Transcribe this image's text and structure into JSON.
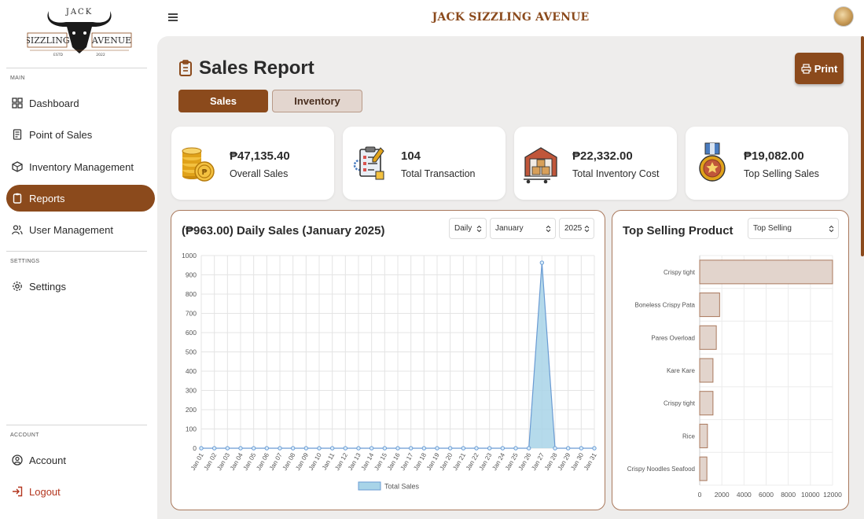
{
  "brand": {
    "logo_top": "JACK",
    "logo_left": "SIZZLING",
    "logo_right": "AVENUE",
    "logo_estd": "ESTD",
    "logo_year": "2022",
    "header_title": "JACK SIZZLING AVENUE"
  },
  "sidebar": {
    "section_main": "MAIN",
    "section_settings": "SETTINGS",
    "section_account": "ACCOUNT",
    "items": {
      "dashboard": "Dashboard",
      "pos": "Point of Sales",
      "inventory": "Inventory Management",
      "reports": "Reports",
      "users": "User Management",
      "settings": "Settings",
      "account": "Account",
      "logout": "Logout"
    }
  },
  "page": {
    "title": "Sales Report",
    "print_label": "Print",
    "tabs": {
      "sales": "Sales",
      "inventory": "Inventory"
    }
  },
  "cards": [
    {
      "value": "₱47,135.40",
      "label": "Overall Sales",
      "icon": "coins-icon"
    },
    {
      "value": "104",
      "label": "Total Transaction",
      "icon": "clipboard-icon"
    },
    {
      "value": "₱22,332.00",
      "label": "Total Inventory Cost",
      "icon": "warehouse-icon"
    },
    {
      "value": "₱19,082.00",
      "label": "Top Selling Sales",
      "icon": "medal-icon"
    }
  ],
  "daily_panel": {
    "title": "(₱963.00) Daily Sales (January 2025)",
    "filters": {
      "period": "Daily",
      "month": "January",
      "year": "2025"
    }
  },
  "top_panel": {
    "title": "Top Selling Product",
    "filter": "Top Selling"
  },
  "colors": {
    "brand": "#8b4a1c",
    "line_fill": "#a8d4e8",
    "line_stroke": "#6a9bd3",
    "bar_fill": "#e2d4cc",
    "bar_stroke": "#a9785c"
  },
  "chart_data": [
    {
      "type": "area",
      "categories": [
        "Jan 01",
        "Jan 02",
        "Jan 03",
        "Jan 04",
        "Jan 05",
        "Jan 06",
        "Jan 07",
        "Jan 08",
        "Jan 09",
        "Jan 10",
        "Jan 11",
        "Jan 12",
        "Jan 13",
        "Jan 14",
        "Jan 15",
        "Jan 16",
        "Jan 17",
        "Jan 18",
        "Jan 19",
        "Jan 20",
        "Jan 21",
        "Jan 22",
        "Jan 23",
        "Jan 24",
        "Jan 25",
        "Jan 26",
        "Jan 27",
        "Jan 28",
        "Jan 29",
        "Jan 30",
        "Jan 31"
      ],
      "series": [
        {
          "name": "Total Sales",
          "values": [
            0,
            0,
            0,
            0,
            0,
            0,
            0,
            0,
            0,
            0,
            0,
            0,
            0,
            0,
            0,
            0,
            0,
            0,
            0,
            0,
            0,
            0,
            0,
            0,
            0,
            0,
            963,
            0,
            0,
            0,
            0
          ]
        }
      ],
      "ylim": [
        0,
        1000
      ],
      "yticks": [
        0,
        100,
        200,
        300,
        400,
        500,
        600,
        700,
        800,
        900,
        1000
      ],
      "grid": true,
      "legend": "bottom"
    },
    {
      "type": "bar",
      "orientation": "horizontal",
      "categories": [
        "Crispy tight",
        "Boneless Crispy Pata",
        "Pares Overload",
        "Kare Kare",
        "Crispy tight",
        "Rice",
        "Crispy Noodles Seafood"
      ],
      "values": [
        12000,
        1800,
        1500,
        1200,
        1200,
        700,
        650
      ],
      "xlim": [
        0,
        12000
      ],
      "xticks": [
        0,
        2000,
        4000,
        6000,
        8000,
        10000,
        12000
      ],
      "grid": true
    }
  ]
}
